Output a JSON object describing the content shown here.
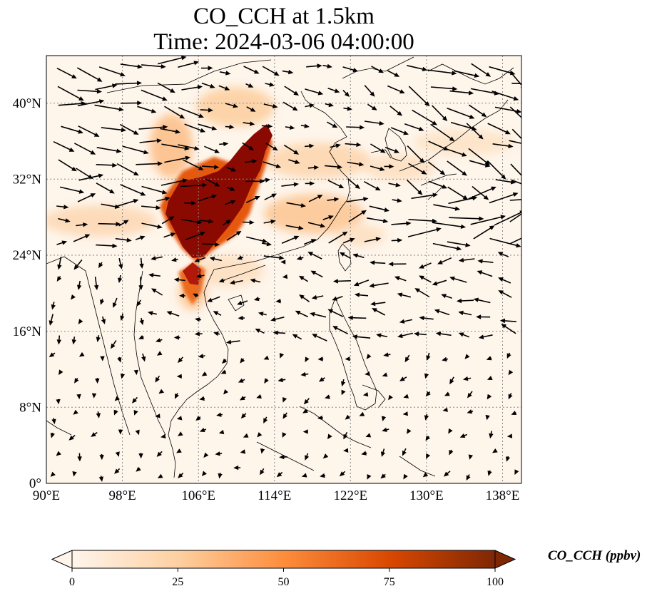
{
  "title": {
    "line1": "CO_CCH at 1.5km",
    "line2": "Time: 2024-03-06 04:00:00"
  },
  "map": {
    "variable": "CO_CCH",
    "height": "1.5km",
    "time": "2024-03-06 04:00:00",
    "lon_range": [
      90,
      140
    ],
    "lat_range": [
      0,
      45
    ],
    "lon_ticks": [
      "90°E",
      "98°E",
      "106°E",
      "114°E",
      "122°E",
      "130°E",
      "138°E"
    ],
    "lat_ticks": [
      "0°",
      "8°N",
      "16°N",
      "24°N",
      "32°N",
      "40°N"
    ],
    "gridlines": true,
    "wind_vectors": true
  },
  "colorbar": {
    "label": "CO_CCH (ppbv)",
    "min": 0,
    "max": 100,
    "ticks": [
      "0",
      "25",
      "50",
      "75",
      "100"
    ],
    "extend": "both",
    "colors": [
      "#fff5eb",
      "#fdd0a2",
      "#fd8d3c",
      "#d94801",
      "#7f2704"
    ]
  }
}
